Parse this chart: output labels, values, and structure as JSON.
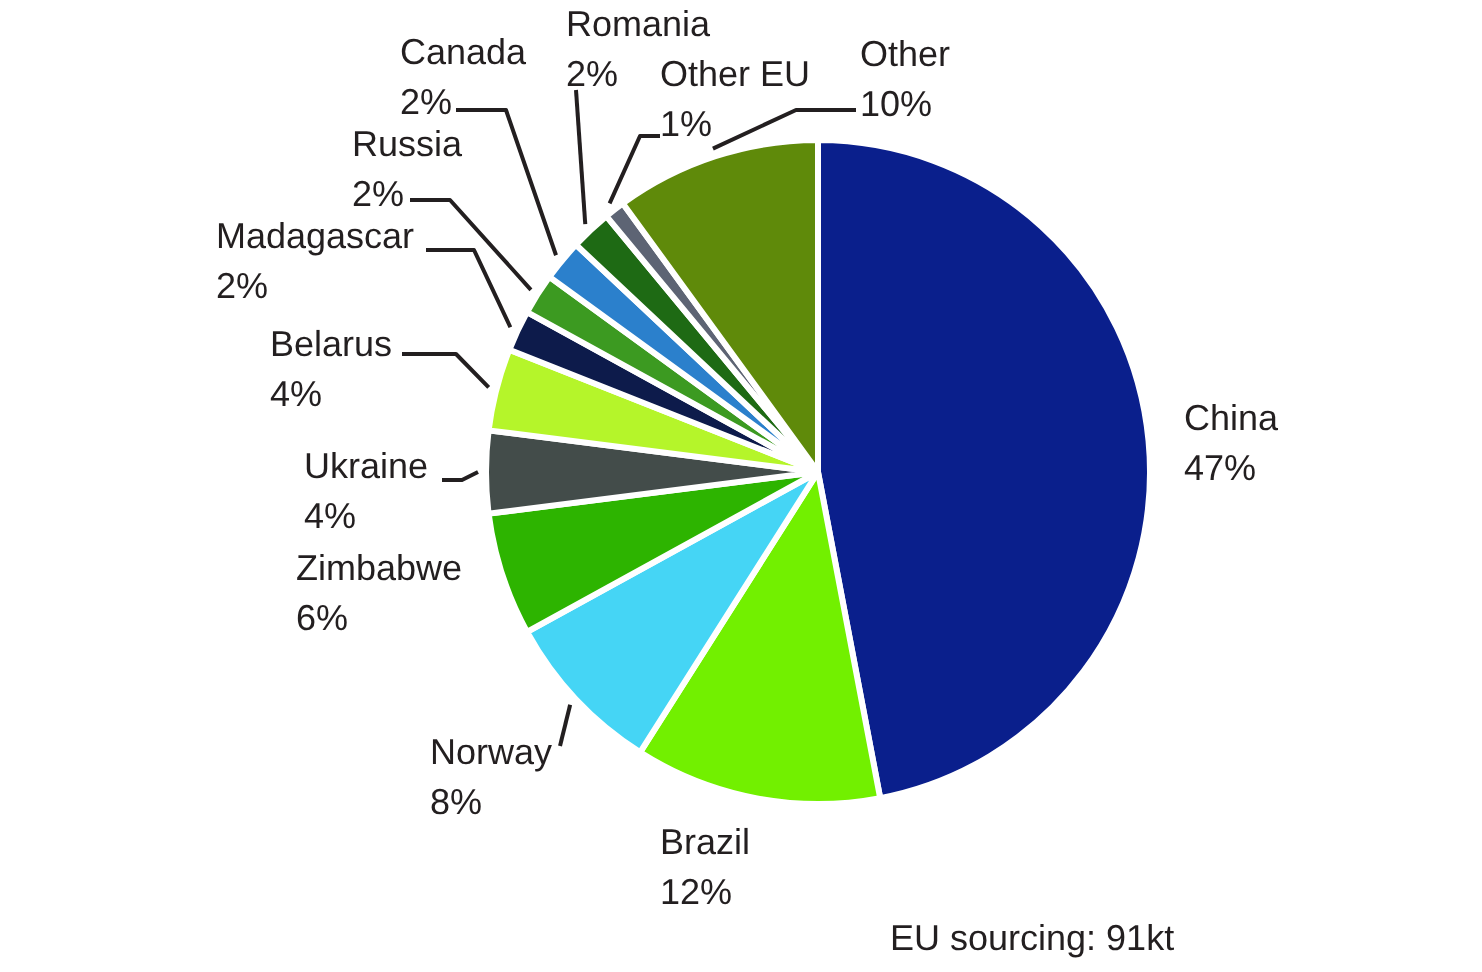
{
  "chart_data": {
    "type": "pie",
    "categories": [
      "China",
      "Brazil",
      "Norway",
      "Zimbabwe",
      "Ukraine",
      "Belarus",
      "Madagascar",
      "Russia",
      "Canada",
      "Romania",
      "Other EU",
      "Other"
    ],
    "values": [
      47,
      12,
      8,
      6,
      4,
      4,
      2,
      2,
      2,
      2,
      1,
      10
    ],
    "value_labels": [
      "47%",
      "12%",
      "8%",
      "6%",
      "4%",
      "4%",
      "2%",
      "2%",
      "2%",
      "2%",
      "1%",
      "10%"
    ],
    "colors": [
      "#0a1f8c",
      "#72f000",
      "#45d5f5",
      "#2db400",
      "#434c4a",
      "#b5f52a",
      "#0d1b4b",
      "#3c9a21",
      "#2b80cc",
      "#1e6a14",
      "#5d6474",
      "#5f8a0a"
    ],
    "annotations": [
      "EU sourcing: 91kt"
    ]
  }
}
